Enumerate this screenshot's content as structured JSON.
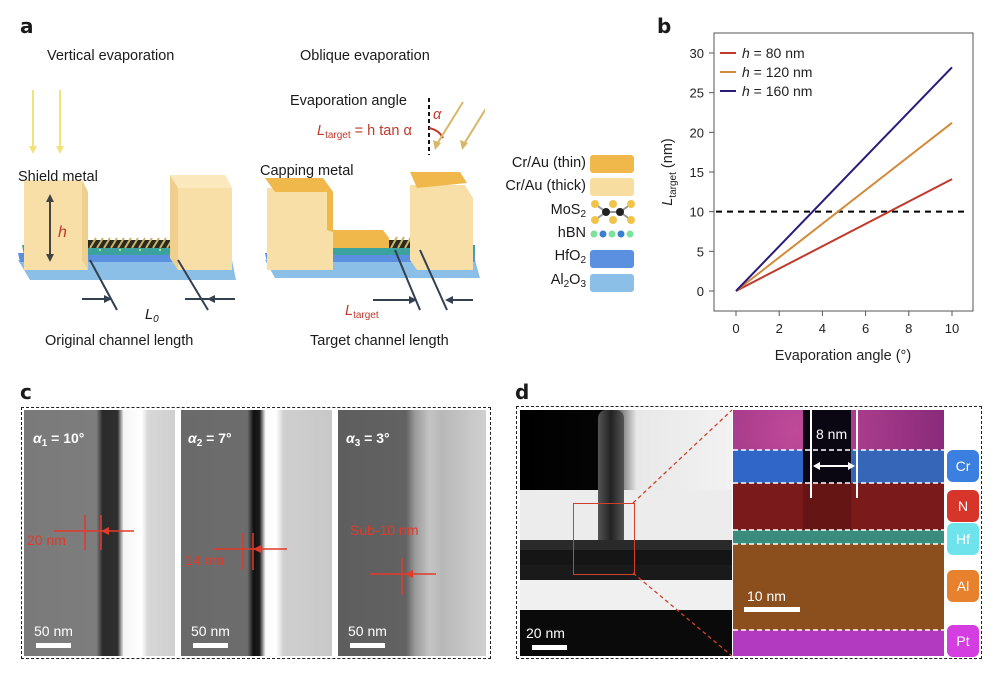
{
  "panel_a": {
    "letter": "a",
    "vertical_title": "Vertical evaporation",
    "oblique_title": "Oblique evaporation",
    "shield_metal": "Shield metal",
    "capping_metal": "Capping metal",
    "h_label": "h",
    "evaporation_angle": "Evaporation angle",
    "alpha": "α",
    "formula_main": "L",
    "formula_sub": "target",
    "formula_rest": " = h tan α",
    "l0_main": "L",
    "l0_sub": "0",
    "ltarget_main": "L",
    "ltarget_sub": "target",
    "original_caption": "Original channel length",
    "target_caption": "Target channel length",
    "legend": [
      {
        "label": "Cr/Au (thin)",
        "color": "#f0b84a"
      },
      {
        "label": "Cr/Au (thick)",
        "color": "#f8ddA0"
      },
      {
        "label": "MoS",
        "sub": "2",
        "color": "molecule"
      },
      {
        "label": "hBN",
        "color": "dots"
      },
      {
        "label": "HfO",
        "sub": "2",
        "color": "#5b8fe0"
      },
      {
        "label": "Al",
        "sub": "2",
        "label2": "O",
        "sub2": "3",
        "color": "#8cbfe8"
      }
    ]
  },
  "panel_b": {
    "letter": "b"
  },
  "chart_data": {
    "type": "line",
    "title": "",
    "xlabel": "Evaporation angle (°)",
    "ylabel_main": "L",
    "ylabel_sub": "target",
    "ylabel_rest": " (nm)",
    "xlim": [
      -1,
      11
    ],
    "ylim": [
      -2,
      32
    ],
    "xticks": [
      0,
      2,
      4,
      6,
      8,
      10
    ],
    "yticks": [
      0,
      5,
      10,
      15,
      20,
      25,
      30
    ],
    "grid": false,
    "legend_position": "top-left",
    "reference_line": {
      "y": 10,
      "style": "dashed",
      "color": "#000000"
    },
    "x": [
      0,
      10
    ],
    "series": [
      {
        "name": "h = 80 nm",
        "h_label": "h",
        "rest": " = 80 nm",
        "color": "#c0392b",
        "values": [
          0,
          14.1
        ]
      },
      {
        "name": "h = 120 nm",
        "h_label": "h",
        "rest": " = 120 nm",
        "color": "#d4893a",
        "values": [
          0,
          21.2
        ]
      },
      {
        "name": "h = 160 nm",
        "h_label": "h",
        "rest": " = 160 nm",
        "color": "#2a1a7a",
        "values": [
          0,
          28.2
        ]
      }
    ]
  },
  "panel_c": {
    "letter": "c",
    "images": [
      {
        "alpha": "α",
        "sub": "1",
        "value": " = 10°",
        "measure": "20 nm",
        "scale": "50 nm"
      },
      {
        "alpha": "α",
        "sub": "2",
        "value": " = 7°",
        "measure": "14 nm",
        "scale": "50 nm"
      },
      {
        "alpha": "α",
        "sub": "3",
        "value": " = 3°",
        "measure": "Sub-10 nm",
        "scale": "50 nm"
      }
    ]
  },
  "panel_d": {
    "letter": "d",
    "tem_scale": "20 nm",
    "eds_scale": "10 nm",
    "gap_label": "8 nm",
    "elements": [
      {
        "label": "Cr",
        "color": "#3b7fe0"
      },
      {
        "label": "N",
        "color": "#d8352a"
      },
      {
        "label": "Hf",
        "color": "#6fe3ec"
      },
      {
        "label": "Al",
        "color": "#e8812e"
      },
      {
        "label": "Pt",
        "color": "#d43ee0"
      }
    ]
  }
}
